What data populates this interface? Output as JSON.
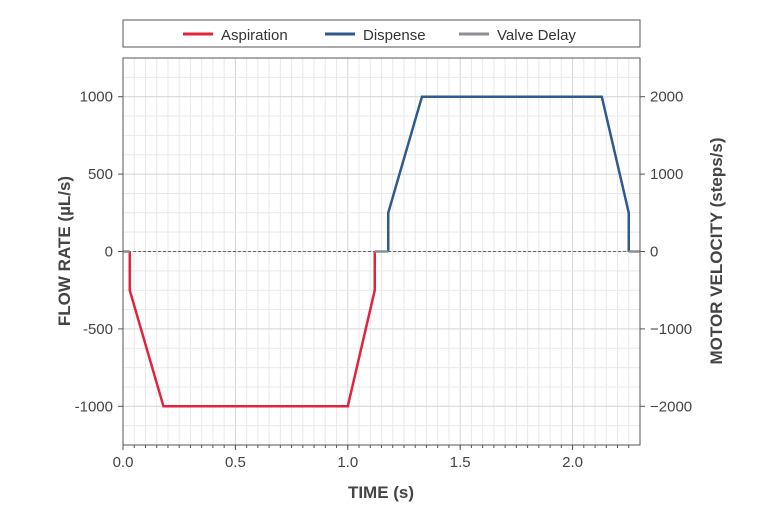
{
  "chart_data": {
    "type": "line",
    "xlabel": "TIME (s)",
    "ylabel": "FLOW RATE (µL/s)",
    "y2label": "MOTOR VELOCITY (steps/s)",
    "xlim": [
      0.0,
      2.3
    ],
    "ylim": [
      -1250,
      1250
    ],
    "y2lim": [
      -2500,
      2500
    ],
    "xticks": [
      0.0,
      0.5,
      1.0,
      1.5,
      2.0
    ],
    "xtick_labels": [
      "0.0",
      "0.5",
      "1.0",
      "1.5",
      "2.0"
    ],
    "yticks": [
      1000,
      500,
      0,
      -500,
      -1000
    ],
    "ytick_labels": [
      "1000",
      "500",
      "0",
      "-500",
      "-1000"
    ],
    "y2ticks": [
      2000,
      1000,
      0,
      -1000,
      -2000
    ],
    "y2tick_labels": [
      "2000",
      "1000",
      "0",
      "−1000",
      "−2000"
    ],
    "grid": true,
    "legend_position": "top",
    "series": [
      {
        "name": "Aspiration",
        "color": "#e0243c",
        "x": [
          0.03,
          0.03,
          0.18,
          1.0,
          1.12,
          1.12
        ],
        "y": [
          0,
          -250,
          -1000,
          -1000,
          -250,
          0
        ]
      },
      {
        "name": "Dispense",
        "color": "#2f5b8c",
        "x": [
          1.18,
          1.18,
          1.33,
          2.13,
          2.25,
          2.25
        ],
        "y": [
          0,
          250,
          1000,
          1000,
          250,
          0
        ]
      },
      {
        "name": "Valve Delay",
        "color": "#8c8f93",
        "segments": [
          {
            "x": [
              0.0,
              0.03
            ],
            "y": [
              0,
              0
            ]
          },
          {
            "x": [
              1.12,
              1.18
            ],
            "y": [
              0,
              0
            ]
          },
          {
            "x": [
              2.25,
              2.3
            ],
            "y": [
              0,
              0
            ]
          }
        ]
      }
    ]
  }
}
